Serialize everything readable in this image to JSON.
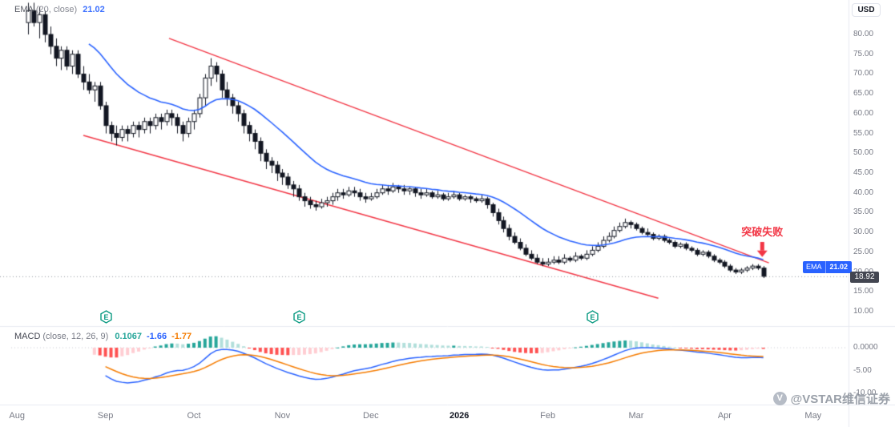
{
  "header": {
    "ema_legend": {
      "name": "EMA",
      "params": "(20, close)",
      "value": "21.02"
    },
    "currency_button": "USD"
  },
  "price_axis": {
    "ticks": [
      "80.00",
      "75.00",
      "70.00",
      "65.00",
      "60.00",
      "55.00",
      "50.00",
      "45.00",
      "40.00",
      "35.00",
      "30.00",
      "25.00",
      "20.00",
      "15.00",
      "10.00"
    ]
  },
  "price_labels": {
    "ema_badge": {
      "label": "EMA",
      "value": "21.02"
    },
    "last_price": "18.92"
  },
  "annotation_label": "突破失败",
  "time_axis": {
    "labels": [
      {
        "text": "Aug",
        "i": -2
      },
      {
        "text": "Sep",
        "i": 14
      },
      {
        "text": "Oct",
        "i": 30
      },
      {
        "text": "Nov",
        "i": 46
      },
      {
        "text": "Dec",
        "i": 62
      },
      {
        "text": "2026",
        "i": 78,
        "major": true
      },
      {
        "text": "Feb",
        "i": 94
      },
      {
        "text": "Mar",
        "i": 110
      },
      {
        "text": "Apr",
        "i": 126
      },
      {
        "text": "May",
        "i": 142
      }
    ]
  },
  "events": [
    {
      "label": "E",
      "i": 14
    },
    {
      "label": "E",
      "i": 49
    },
    {
      "label": "E",
      "i": 102
    }
  ],
  "macd_panel": {
    "name": "MACD",
    "params": "(close, 12, 26, 9)",
    "hist_value": "0.1067",
    "macd_value": "-1.66",
    "signal_value": "-1.77",
    "axis_ticks": [
      {
        "text": "0.0000",
        "v": 0
      },
      {
        "text": "-5.00",
        "v": -5
      },
      {
        "text": "-10.00",
        "v": -10
      }
    ]
  },
  "watermark_text": "@VSTAR维信证券",
  "colors": {
    "up_candle": "#ffffff",
    "down_candle": "#131722",
    "candle_border": "#131722",
    "ema_line": "#2962ff",
    "trendline": "#f23645",
    "annotation": "#f23645",
    "macd_line": "#2962ff",
    "signal_line": "#f57c00",
    "hist_pos": "#26a69a",
    "hist_pos_weak": "#b2dfdb",
    "hist_neg": "#ff5252",
    "hist_neg_weak": "#ffcdd2",
    "event_badge": "#089981",
    "separator": "#e7eaf0",
    "axis_text": "#787b86",
    "price_line": "#9598a1"
  },
  "chart_data": {
    "type": "candlestick",
    "currency": "USD",
    "price_range": {
      "min": 10,
      "max": 80,
      "tick_step": 5
    },
    "ema_period": 20,
    "macd_params": [
      12,
      26,
      9
    ],
    "last_close": 18.92,
    "ema_value": 21.02,
    "candles": [
      [
        83,
        88,
        80,
        86
      ],
      [
        86,
        88,
        82,
        83
      ],
      [
        83,
        87,
        79,
        85
      ],
      [
        85,
        86,
        78,
        80
      ],
      [
        80,
        82,
        75,
        77
      ],
      [
        77,
        79,
        72,
        74
      ],
      [
        74,
        77,
        71,
        76
      ],
      [
        76,
        77,
        71,
        72
      ],
      [
        72,
        76,
        70,
        75
      ],
      [
        75,
        76,
        69,
        70
      ],
      [
        70,
        72,
        66,
        68
      ],
      [
        68,
        70,
        65,
        66
      ],
      [
        66,
        68,
        63,
        67
      ],
      [
        67,
        68,
        61,
        62
      ],
      [
        62,
        63,
        55,
        57
      ],
      [
        57,
        58,
        53,
        55
      ],
      [
        55,
        57,
        52,
        54
      ],
      [
        54,
        57,
        53,
        56
      ],
      [
        56,
        57,
        53,
        55
      ],
      [
        55,
        58,
        54,
        57
      ],
      [
        57,
        58,
        54,
        56
      ],
      [
        56,
        59,
        55,
        58
      ],
      [
        58,
        59,
        55,
        57
      ],
      [
        57,
        60,
        56,
        59
      ],
      [
        59,
        60,
        56,
        58
      ],
      [
        58,
        61,
        57,
        60
      ],
      [
        60,
        61,
        57,
        59
      ],
      [
        59,
        60,
        55,
        57
      ],
      [
        57,
        58,
        53,
        55
      ],
      [
        55,
        59,
        54,
        58
      ],
      [
        58,
        61,
        56,
        60
      ],
      [
        60,
        65,
        59,
        64
      ],
      [
        64,
        70,
        62,
        69
      ],
      [
        69,
        74,
        67,
        72
      ],
      [
        72,
        73,
        68,
        70
      ],
      [
        70,
        71,
        64,
        66
      ],
      [
        66,
        68,
        62,
        64
      ],
      [
        64,
        65,
        60,
        62
      ],
      [
        62,
        63,
        58,
        60
      ],
      [
        60,
        61,
        55,
        57
      ],
      [
        57,
        58,
        53,
        55
      ],
      [
        55,
        56,
        51,
        53
      ],
      [
        53,
        54,
        48,
        50
      ],
      [
        50,
        51,
        46,
        48
      ],
      [
        48,
        49,
        45,
        47
      ],
      [
        47,
        48,
        43,
        45
      ],
      [
        45,
        46,
        42,
        44
      ],
      [
        44,
        45,
        41,
        42
      ],
      [
        42,
        43,
        39,
        41
      ],
      [
        41,
        42,
        38,
        39
      ],
      [
        39,
        40,
        36.5,
        38
      ],
      [
        38,
        39,
        36,
        37
      ],
      [
        37,
        38,
        35.5,
        36.5
      ],
      [
        36.5,
        38.5,
        36,
        37.5
      ],
      [
        37.5,
        39,
        36.5,
        38
      ],
      [
        38,
        40,
        37,
        39
      ],
      [
        39,
        41,
        38,
        40
      ],
      [
        40,
        41,
        38.5,
        39.5
      ],
      [
        39.5,
        41.5,
        39,
        40.5
      ],
      [
        40.5,
        41.5,
        39,
        40
      ],
      [
        40,
        41,
        38,
        39
      ],
      [
        39,
        40,
        37.5,
        38.5
      ],
      [
        38.5,
        40,
        38,
        39
      ],
      [
        39,
        41,
        38.5,
        40
      ],
      [
        40,
        42,
        39.5,
        41
      ],
      [
        41,
        42,
        39.5,
        40.5
      ],
      [
        40.5,
        42.5,
        40,
        41.5
      ],
      [
        41.5,
        42,
        40,
        41
      ],
      [
        41,
        42,
        39.5,
        40.5
      ],
      [
        40.5,
        41.5,
        39.5,
        41
      ],
      [
        41,
        41.5,
        39,
        40
      ],
      [
        40,
        41,
        38.5,
        39.5
      ],
      [
        39.5,
        41,
        39,
        40
      ],
      [
        40,
        40.5,
        38.5,
        39
      ],
      [
        39,
        40.5,
        38.5,
        39.5
      ],
      [
        39.5,
        40,
        38,
        38.5
      ],
      [
        38.5,
        40,
        38,
        39
      ],
      [
        39,
        40.5,
        38.5,
        39.5
      ],
      [
        39.5,
        40,
        38,
        38.5
      ],
      [
        38.5,
        39.5,
        38,
        39
      ],
      [
        39,
        39.5,
        37.5,
        38.5
      ],
      [
        38.5,
        39,
        37.5,
        38
      ],
      [
        38,
        39.5,
        37.5,
        38.5
      ],
      [
        38.5,
        39,
        36,
        37
      ],
      [
        37,
        37.5,
        34,
        35
      ],
      [
        35,
        36,
        32,
        33
      ],
      [
        33,
        34,
        30,
        31
      ],
      [
        31,
        32,
        28,
        29
      ],
      [
        29,
        30,
        27,
        27.5
      ],
      [
        27.5,
        28.5,
        25.5,
        26
      ],
      [
        26,
        27,
        24,
        24.5
      ],
      [
        24.5,
        25.5,
        23,
        23.5
      ],
      [
        23.5,
        24.5,
        22,
        22.5
      ],
      [
        22.5,
        23.5,
        21.5,
        22
      ],
      [
        22,
        23.5,
        21.5,
        22.5
      ],
      [
        22.5,
        24,
        22,
        23
      ],
      [
        23,
        24,
        22,
        22.5
      ],
      [
        22.5,
        24.5,
        22,
        23.5
      ],
      [
        23.5,
        24,
        22.5,
        23
      ],
      [
        23,
        25,
        22.5,
        24
      ],
      [
        24,
        24.5,
        23,
        23.5
      ],
      [
        23.5,
        25.5,
        23,
        24.5
      ],
      [
        24.5,
        26.5,
        24,
        25.5
      ],
      [
        25.5,
        27.5,
        25,
        26.5
      ],
      [
        26.5,
        29,
        26,
        28
      ],
      [
        28,
        30,
        27.5,
        29
      ],
      [
        29,
        31.5,
        28.5,
        30.5
      ],
      [
        30.5,
        32.5,
        30,
        31.5
      ],
      [
        31.5,
        33.5,
        31,
        32.5
      ],
      [
        32.5,
        33,
        31,
        32
      ],
      [
        32,
        32.5,
        30.5,
        31
      ],
      [
        31,
        31.5,
        29.5,
        30
      ],
      [
        30,
        31,
        29,
        29.5
      ],
      [
        29.5,
        30,
        28,
        28.5
      ],
      [
        28.5,
        29.5,
        28,
        29
      ],
      [
        29,
        29.5,
        27.5,
        28
      ],
      [
        28,
        28.5,
        27,
        27.5
      ],
      [
        27.5,
        28,
        26,
        26.5
      ],
      [
        26.5,
        27.5,
        26,
        27
      ],
      [
        27,
        27.5,
        25.5,
        26
      ],
      [
        26,
        26.5,
        25,
        25.5
      ],
      [
        25.5,
        26,
        24,
        24.5
      ],
      [
        24.5,
        25.5,
        24,
        25
      ],
      [
        25,
        25.5,
        23.5,
        24
      ],
      [
        24,
        24.5,
        22.5,
        23
      ],
      [
        23,
        23.5,
        22,
        22.5
      ],
      [
        22.5,
        23,
        21,
        21.5
      ],
      [
        21.5,
        22,
        20,
        20.5
      ],
      [
        20.5,
        21,
        19.5,
        20
      ],
      [
        20,
        21,
        19.5,
        20.5
      ],
      [
        20.5,
        21.5,
        20,
        21
      ],
      [
        21,
        22,
        20.5,
        21.5
      ],
      [
        21.5,
        22,
        20.5,
        21
      ],
      [
        21,
        21.5,
        18.5,
        18.92
      ]
    ],
    "trendlines": [
      {
        "name": "upper-channel",
        "i1": 25.5,
        "p1": 79,
        "i2": 134,
        "p2": 22.3
      },
      {
        "name": "lower-channel",
        "i1": 10,
        "p1": 54.5,
        "i2": 114,
        "p2": 13.4
      }
    ],
    "annotation": {
      "text": "突破失败",
      "i": 132.8,
      "text_p": 31.8,
      "from_p": 27.6,
      "to_p": 23.8
    }
  }
}
